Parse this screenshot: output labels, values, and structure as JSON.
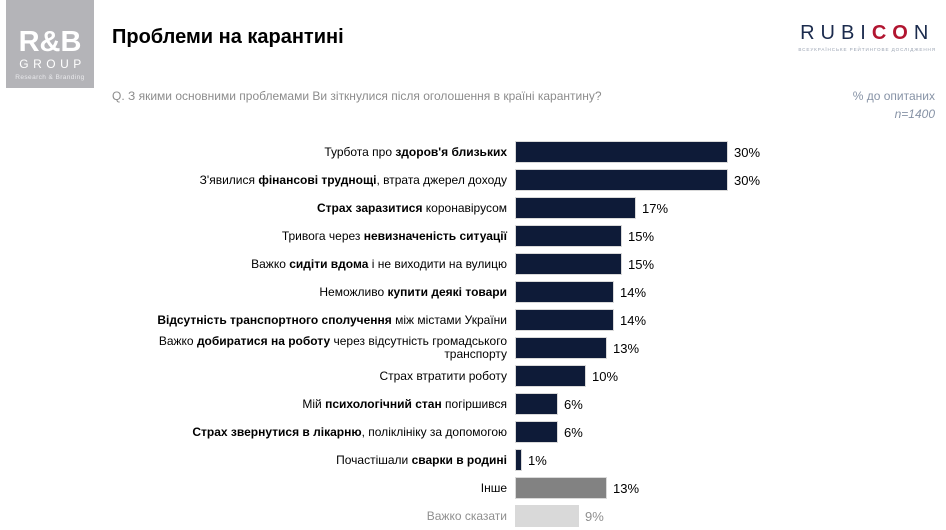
{
  "header": {
    "title": "Проблеми на карантині",
    "question": "Q. З якими основними проблемами Ви зіткнулися після оголошення в країні карантину?",
    "pct_note": "% до опитаних",
    "sample": "n=1400"
  },
  "logo_rb": {
    "name": "R&B",
    "group": "GROUP",
    "tagline": "Research & Branding"
  },
  "logo_rubicon": {
    "part_navy1": "RUBI",
    "part_red": "CO",
    "part_navy2": "N",
    "tagline": "ВСЕУКРАЇНСЬКЕ РЕЙТИНГОВЕ ДОСЛІДЖЕННЯ",
    "navy": "#1b2b4d",
    "red": "#b11530"
  },
  "chart_data": {
    "type": "bar",
    "orientation": "horizontal",
    "title": "Проблеми на карантині",
    "subtitle": "Q. З якими основними проблемами Ви зіткнулися після оголошення в країні карантину?",
    "unit": "% до опитаних",
    "sample_size": "n=1400",
    "xlim": [
      0,
      32
    ],
    "colors": {
      "navy": "#0e1b38",
      "gray": "#828282",
      "lightgray": "#d9d9d9"
    },
    "categories": [
      "Турбота про здоров'я близьких",
      "З'явилися фінансові труднощі, втрата джерел доходу",
      "Страх заразитися коронавірусом",
      "Тривога через невизначеність ситуації",
      "Важко сидіти вдома і не виходити на вулицю",
      "Неможливо купити деякі товари",
      "Відсутність транспортного сполучення між містами України",
      "Важко добиратися на роботу через відсутність громадського транспорту",
      "Страх втратити роботу",
      "Мій психологічний стан погіршився",
      "Страх звернутися в лікарню, поліклініку за допомогою",
      "Почастішали сварки в родині",
      "Інше",
      "Важко сказати"
    ],
    "values": [
      30,
      30,
      17,
      15,
      15,
      14,
      14,
      13,
      10,
      6,
      6,
      1,
      13,
      9
    ],
    "bars": [
      {
        "value": 30,
        "color": "navy",
        "muted": false,
        "parts": [
          {
            "t": "Турбота про "
          },
          {
            "t": "здоров'я близьких",
            "b": true
          }
        ]
      },
      {
        "value": 30,
        "color": "navy",
        "muted": false,
        "parts": [
          {
            "t": "З'явилися "
          },
          {
            "t": "фінансові труднощі",
            "b": true
          },
          {
            "t": ", втрата джерел доходу"
          }
        ]
      },
      {
        "value": 17,
        "color": "navy",
        "muted": false,
        "parts": [
          {
            "t": "Страх заразитися",
            "b": true
          },
          {
            "t": " коронавірусом"
          }
        ]
      },
      {
        "value": 15,
        "color": "navy",
        "muted": false,
        "parts": [
          {
            "t": "Тривога через "
          },
          {
            "t": "невизначеність ситуації",
            "b": true
          }
        ]
      },
      {
        "value": 15,
        "color": "navy",
        "muted": false,
        "parts": [
          {
            "t": "Важко "
          },
          {
            "t": "сидіти вдома",
            "b": true
          },
          {
            "t": " і не виходити на вулицю"
          }
        ]
      },
      {
        "value": 14,
        "color": "navy",
        "muted": false,
        "parts": [
          {
            "t": "Неможливо "
          },
          {
            "t": "купити деякі товари",
            "b": true
          }
        ]
      },
      {
        "value": 14,
        "color": "navy",
        "muted": false,
        "parts": [
          {
            "t": "Відсутність транспортного сполучення",
            "b": true
          },
          {
            "t": " між містами України"
          }
        ]
      },
      {
        "value": 13,
        "color": "navy",
        "muted": false,
        "parts": [
          {
            "t": "Важко "
          },
          {
            "t": "добиратися на роботу",
            "b": true
          },
          {
            "t": " через відсутність громадського"
          },
          {
            "br": true
          },
          {
            "t": "транспорту"
          }
        ]
      },
      {
        "value": 10,
        "color": "navy",
        "muted": false,
        "parts": [
          {
            "t": "Страх втратити роботу"
          }
        ]
      },
      {
        "value": 6,
        "color": "navy",
        "muted": false,
        "parts": [
          {
            "t": "Мій "
          },
          {
            "t": "психологічний стан",
            "b": true
          },
          {
            "t": " погіршився"
          }
        ]
      },
      {
        "value": 6,
        "color": "navy",
        "muted": false,
        "parts": [
          {
            "t": "Страх звернутися в лікарню",
            "b": true
          },
          {
            "t": ", поліклініку за допомогою"
          }
        ]
      },
      {
        "value": 1,
        "color": "navy",
        "muted": false,
        "parts": [
          {
            "t": "Почастішали "
          },
          {
            "t": "сварки в родині",
            "b": true
          }
        ]
      },
      {
        "value": 13,
        "color": "gray",
        "muted": false,
        "parts": [
          {
            "t": "Інше"
          }
        ]
      },
      {
        "value": 9,
        "color": "lightgray",
        "muted": true,
        "parts": [
          {
            "t": "Важко сказати"
          }
        ]
      }
    ]
  }
}
